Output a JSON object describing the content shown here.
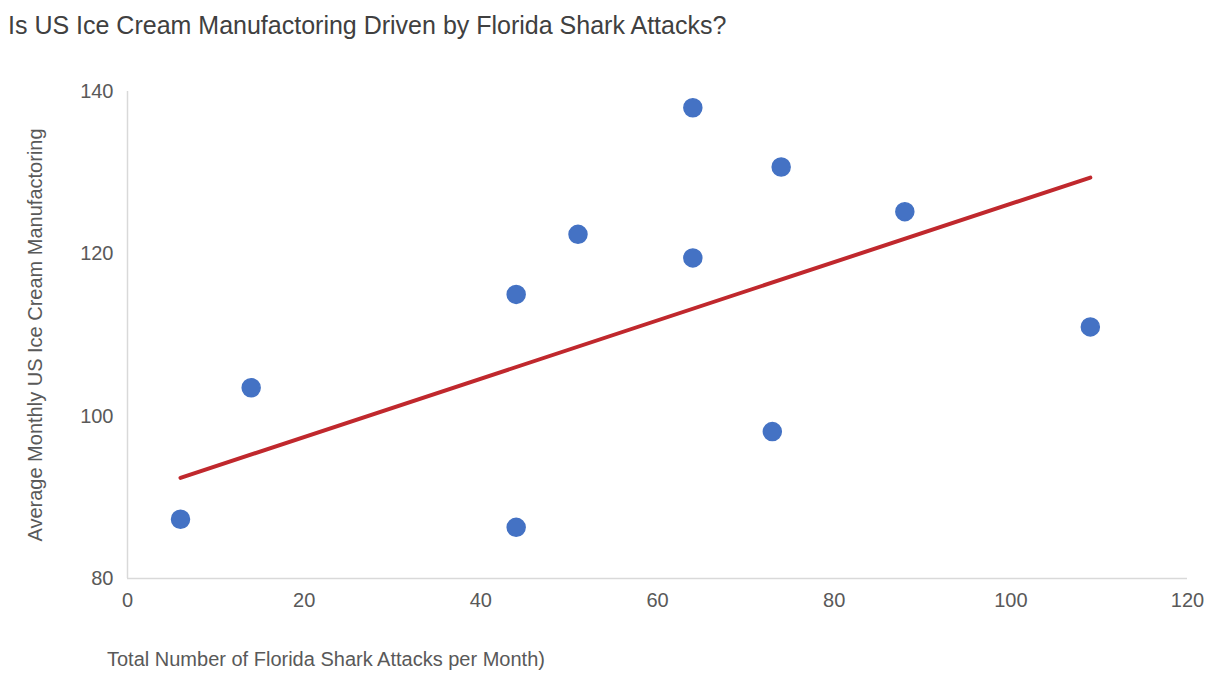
{
  "chart_data": {
    "type": "scatter",
    "title": "Is US Ice Cream Manufactoring Driven by Florida Shark Attacks?",
    "x_label": "Total Number of Florida Shark Attacks per Month)",
    "y_label": "Average Monthly US Ice Cream Manufactoring",
    "x": [
      6,
      14,
      44,
      44,
      51,
      64,
      64,
      73,
      74,
      88,
      109
    ],
    "values": [
      87.3,
      103.5,
      86.3,
      115.0,
      122.4,
      138.0,
      119.5,
      98.1,
      130.7,
      125.2,
      111.0
    ],
    "color": "#4472c4",
    "marker": "circle",
    "trendline": {
      "x": [
        6,
        109
      ],
      "values": [
        92.4,
        129.4
      ],
      "color": "#c0282d",
      "line_style": "solid"
    },
    "xlim": [
      0,
      120
    ],
    "xticks": [
      0,
      20,
      40,
      60,
      80,
      100,
      120
    ],
    "ylim": [
      80,
      140
    ],
    "yticks": [
      80,
      100,
      120,
      140
    ],
    "grid": false
  }
}
